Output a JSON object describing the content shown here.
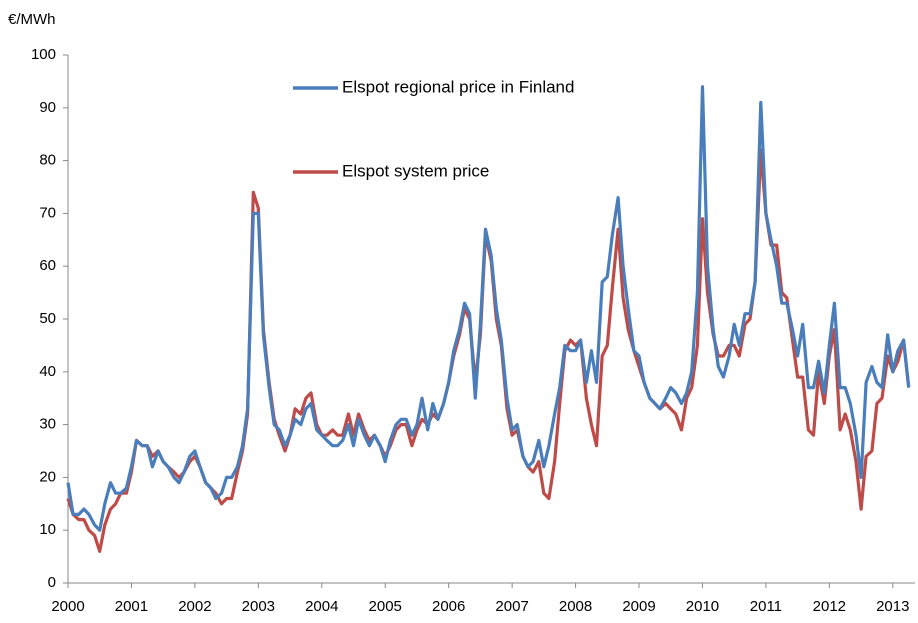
{
  "chart_data": {
    "type": "line",
    "y_label": "€/MWh",
    "x": [
      2000,
      2000.08,
      2000.17,
      2000.25,
      2000.33,
      2000.42,
      2000.5,
      2000.58,
      2000.67,
      2000.75,
      2000.83,
      2000.92,
      2001,
      2001.08,
      2001.17,
      2001.25,
      2001.33,
      2001.42,
      2001.5,
      2001.58,
      2001.67,
      2001.75,
      2001.83,
      2001.92,
      2002,
      2002.08,
      2002.17,
      2002.25,
      2002.33,
      2002.42,
      2002.5,
      2002.58,
      2002.67,
      2002.75,
      2002.83,
      2002.92,
      2003,
      2003.08,
      2003.17,
      2003.25,
      2003.33,
      2003.42,
      2003.5,
      2003.58,
      2003.67,
      2003.75,
      2003.83,
      2003.92,
      2004,
      2004.08,
      2004.17,
      2004.25,
      2004.33,
      2004.42,
      2004.5,
      2004.58,
      2004.67,
      2004.75,
      2004.83,
      2004.92,
      2005,
      2005.08,
      2005.17,
      2005.25,
      2005.33,
      2005.42,
      2005.5,
      2005.58,
      2005.67,
      2005.75,
      2005.83,
      2005.92,
      2006,
      2006.08,
      2006.17,
      2006.25,
      2006.33,
      2006.42,
      2006.5,
      2006.58,
      2006.67,
      2006.75,
      2006.83,
      2006.92,
      2007,
      2007.08,
      2007.17,
      2007.25,
      2007.33,
      2007.42,
      2007.5,
      2007.58,
      2007.67,
      2007.75,
      2007.83,
      2007.92,
      2008,
      2008.08,
      2008.17,
      2008.25,
      2008.33,
      2008.42,
      2008.5,
      2008.58,
      2008.67,
      2008.75,
      2008.83,
      2008.92,
      2009,
      2009.08,
      2009.17,
      2009.25,
      2009.33,
      2009.42,
      2009.5,
      2009.58,
      2009.67,
      2009.75,
      2009.83,
      2009.92,
      2010,
      2010.08,
      2010.17,
      2010.25,
      2010.33,
      2010.42,
      2010.5,
      2010.58,
      2010.67,
      2010.75,
      2010.83,
      2010.92,
      2011,
      2011.08,
      2011.17,
      2011.25,
      2011.33,
      2011.42,
      2011.5,
      2011.58,
      2011.67,
      2011.75,
      2011.83,
      2011.92,
      2012,
      2012.08,
      2012.17,
      2012.25,
      2012.33,
      2012.42,
      2012.5,
      2012.58,
      2012.67,
      2012.75,
      2012.83,
      2012.92,
      2013,
      2013.08,
      2013.17,
      2013.25
    ],
    "series": [
      {
        "name": "Elspot regional price in Finland",
        "color": "#4a7ebb",
        "values": [
          19,
          13,
          13,
          14,
          13,
          11,
          10,
          15,
          19,
          17,
          17,
          18,
          22,
          27,
          26,
          26,
          22,
          25,
          23,
          22,
          20,
          19,
          21,
          24,
          25,
          22,
          19,
          18,
          16,
          17,
          20,
          20,
          22,
          26,
          33,
          70,
          70,
          47,
          37,
          30,
          29,
          26,
          28,
          31,
          30,
          33,
          34,
          29,
          28,
          27,
          26,
          26,
          27,
          30,
          26,
          31,
          28,
          26,
          28,
          26,
          23,
          27,
          30,
          31,
          31,
          28,
          30,
          35,
          29,
          34,
          31,
          34,
          38,
          44,
          48,
          53,
          51,
          35,
          49,
          67,
          62,
          52,
          46,
          35,
          29,
          30,
          24,
          22,
          23,
          27,
          22,
          26,
          32,
          37,
          45,
          44,
          44,
          46,
          38,
          44,
          38,
          57,
          58,
          66,
          73,
          60,
          52,
          44,
          43,
          38,
          35,
          34,
          33,
          35,
          37,
          36,
          34,
          36,
          40,
          55,
          94,
          60,
          48,
          41,
          39,
          43,
          49,
          45,
          51,
          51,
          57,
          91,
          70,
          65,
          60,
          53,
          53,
          48,
          43,
          49,
          37,
          37,
          42,
          36,
          45,
          53,
          37,
          37,
          34,
          28,
          20,
          38,
          41,
          38,
          37,
          47,
          40,
          44,
          46,
          37
        ]
      },
      {
        "name": "Elspot system price",
        "color": "#be4b48",
        "values": [
          16,
          13,
          12,
          12,
          10,
          9,
          6,
          11,
          14,
          15,
          17,
          17,
          21,
          27,
          26,
          26,
          24,
          25,
          23,
          22,
          21,
          20,
          21,
          23,
          24,
          22,
          19,
          18,
          17,
          15,
          16,
          16,
          21,
          25,
          32,
          74,
          71,
          48,
          38,
          31,
          28,
          25,
          28,
          33,
          32,
          35,
          36,
          30,
          28,
          28,
          29,
          28,
          28,
          32,
          28,
          32,
          29,
          27,
          28,
          26,
          24,
          26,
          29,
          30,
          30,
          26,
          29,
          31,
          30,
          32,
          31,
          34,
          38,
          43,
          47,
          52,
          50,
          38,
          47,
          66,
          61,
          50,
          45,
          33,
          28,
          29,
          24,
          22,
          21,
          23,
          17,
          16,
          23,
          34,
          44,
          46,
          45,
          46,
          35,
          30,
          26,
          43,
          45,
          56,
          67,
          54,
          48,
          44,
          41,
          38,
          35,
          34,
          33,
          34,
          33,
          32,
          29,
          35,
          37,
          45,
          69,
          55,
          47,
          43,
          43,
          45,
          45,
          43,
          49,
          50,
          57,
          82,
          70,
          64,
          64,
          55,
          54,
          46,
          39,
          39,
          29,
          28,
          40,
          34,
          43,
          48,
          29,
          32,
          29,
          23,
          14,
          24,
          25,
          34,
          35,
          43,
          40,
          42,
          46,
          37
        ]
      }
    ],
    "xlim": [
      2000,
      2013.35
    ],
    "xticks": [
      2000,
      2001,
      2002,
      2003,
      2004,
      2005,
      2006,
      2007,
      2008,
      2009,
      2010,
      2011,
      2012,
      2013
    ],
    "ylim": [
      0,
      100
    ],
    "yticks": [
      0,
      10,
      20,
      30,
      40,
      50,
      60,
      70,
      80,
      90,
      100
    ],
    "grid": false
  }
}
